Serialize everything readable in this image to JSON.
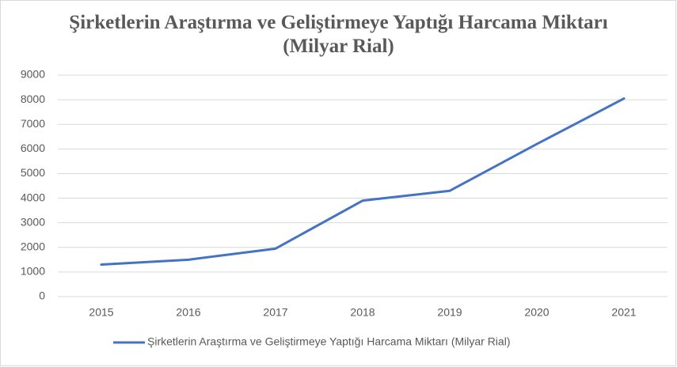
{
  "chart_data": {
    "type": "line",
    "title": "Şirketlerin Araştırma ve Geliştirmeye Yaptığı Harcama Miktarı (Milyar Rial)",
    "categories": [
      "2015",
      "2016",
      "2017",
      "2018",
      "2019",
      "2020",
      "2021"
    ],
    "series": [
      {
        "name": "Şirketlerin Araştırma ve Geliştirmeye Yaptığı Harcama Miktarı (Milyar Rial)",
        "color": "#4472c4",
        "values": [
          1300,
          1500,
          1950,
          3900,
          4300,
          6200,
          8050
        ]
      }
    ],
    "ylim": [
      0,
      9000
    ],
    "yticks": [
      0,
      1000,
      2000,
      3000,
      4000,
      5000,
      6000,
      7000,
      8000,
      9000
    ],
    "grid": true,
    "legend": "bottom"
  }
}
